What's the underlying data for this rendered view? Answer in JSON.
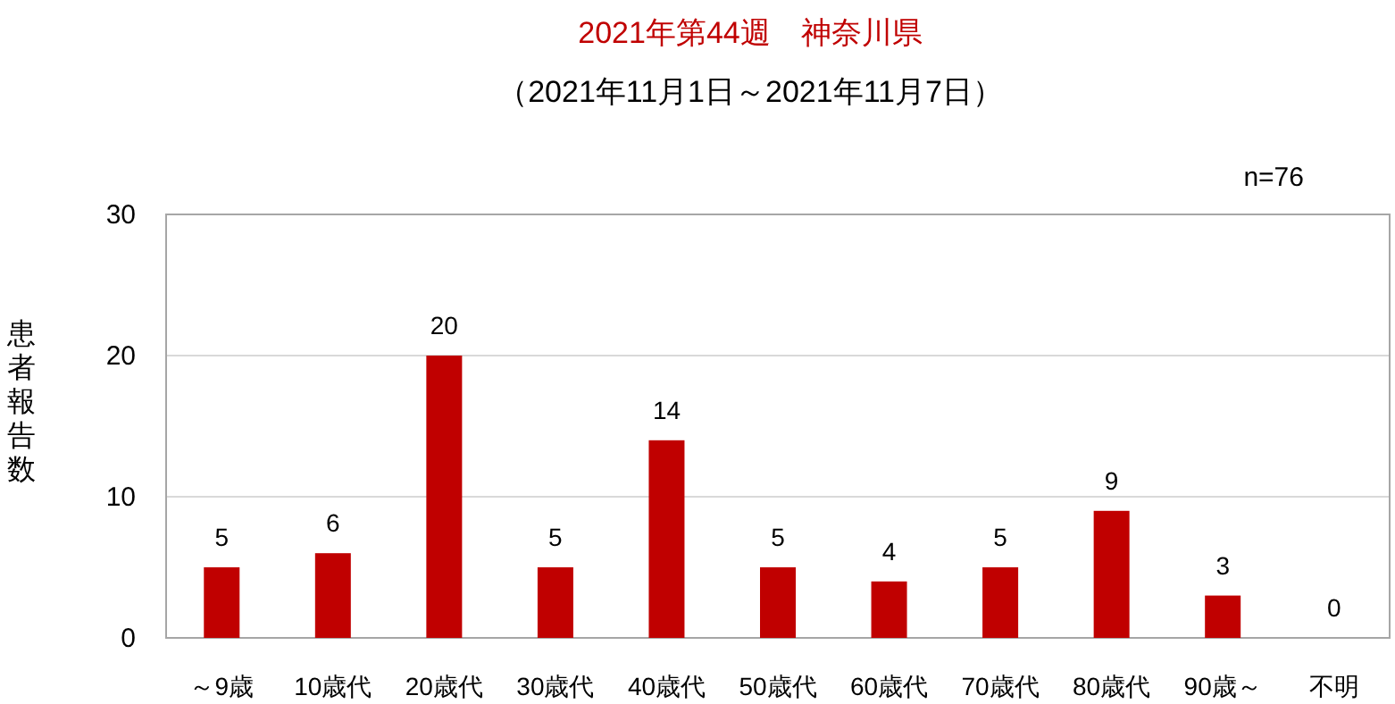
{
  "chart_data": {
    "type": "bar",
    "title": "2021年第44週　神奈川県",
    "subtitle": "（2021年11月1日～2021年11月7日）",
    "ylabel": "患者報告数",
    "annotations": [
      "n=76"
    ],
    "categories": [
      "～9歳",
      "10歳代",
      "20歳代",
      "30歳代",
      "40歳代",
      "50歳代",
      "60歳代",
      "70歳代",
      "80歳代",
      "90歳～",
      "不明"
    ],
    "values": [
      5,
      6,
      20,
      5,
      14,
      5,
      4,
      5,
      9,
      3,
      0
    ],
    "color": "#c00000",
    "ylim": [
      0,
      30
    ],
    "yticks": [
      0,
      10,
      20,
      30
    ],
    "grid": "y",
    "data_labels": true
  }
}
